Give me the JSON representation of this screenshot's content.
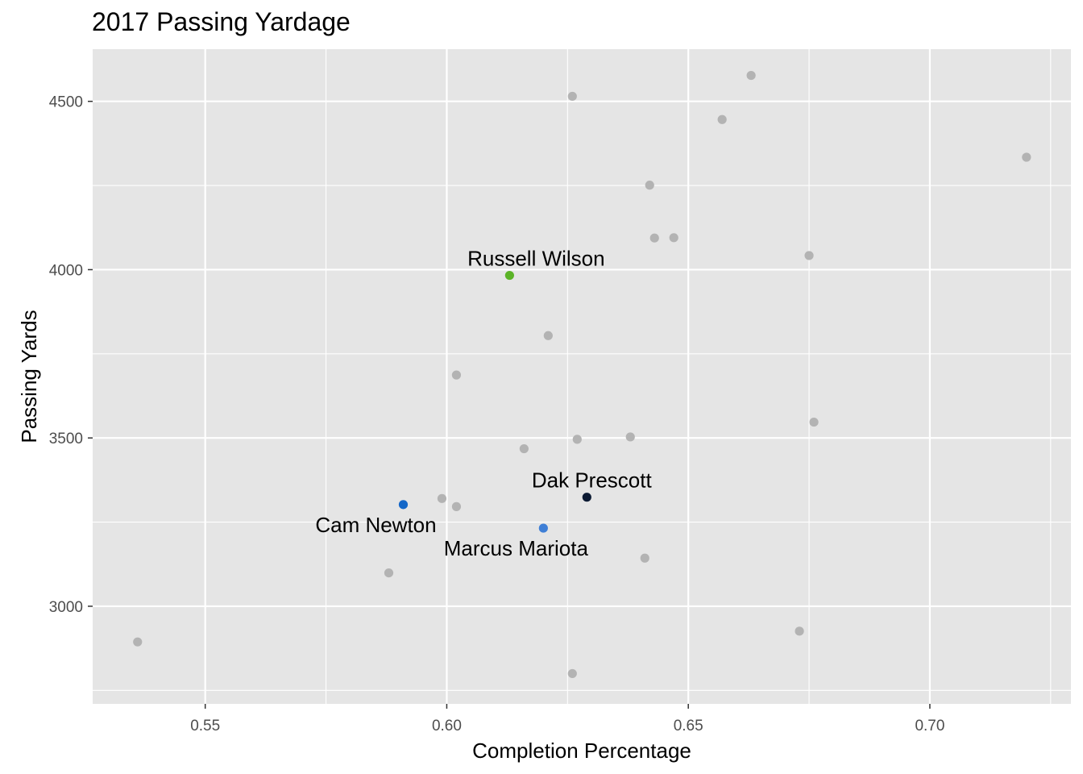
{
  "chart_data": {
    "type": "scatter",
    "title": "2017 Passing Yardage",
    "xlabel": "Completion Percentage",
    "ylabel": "Passing Yards",
    "xlim": [
      0.5267,
      0.7292
    ],
    "ylim": [
      2710,
      4655
    ],
    "x_ticks": [
      "0.55",
      "0.60",
      "0.65",
      "0.70"
    ],
    "y_ticks": [
      "3000",
      "3500",
      "4000",
      "4500"
    ],
    "x_tick_values": [
      0.55,
      0.6,
      0.65,
      0.7
    ],
    "y_tick_values": [
      3000,
      3500,
      4000,
      4500
    ],
    "grid": true,
    "background": "#e5e5e5",
    "default_point_color": "#b3b3b3",
    "highlighted": [
      {
        "label": "Russell Wilson",
        "x": 0.613,
        "y": 3983,
        "color": "#5bb327"
      },
      {
        "label": "Dak Prescott",
        "x": 0.629,
        "y": 3324,
        "color": "#0c1a33"
      },
      {
        "label": "Cam Newton",
        "x": 0.591,
        "y": 3302,
        "color": "#1467c8"
      },
      {
        "label": "Marcus Mariota",
        "x": 0.62,
        "y": 3232,
        "color": "#3f7fd6"
      }
    ],
    "points": [
      {
        "x": 0.663,
        "y": 4577
      },
      {
        "x": 0.626,
        "y": 4515
      },
      {
        "x": 0.657,
        "y": 4446
      },
      {
        "x": 0.72,
        "y": 4334
      },
      {
        "x": 0.642,
        "y": 4251
      },
      {
        "x": 0.643,
        "y": 4094
      },
      {
        "x": 0.647,
        "y": 4095
      },
      {
        "x": 0.675,
        "y": 4042
      },
      {
        "x": 0.621,
        "y": 3804
      },
      {
        "x": 0.602,
        "y": 3687
      },
      {
        "x": 0.676,
        "y": 3547
      },
      {
        "x": 0.638,
        "y": 3503
      },
      {
        "x": 0.627,
        "y": 3496
      },
      {
        "x": 0.616,
        "y": 3468
      },
      {
        "x": 0.599,
        "y": 3320
      },
      {
        "x": 0.602,
        "y": 3296
      },
      {
        "x": 0.641,
        "y": 3143
      },
      {
        "x": 0.588,
        "y": 3099
      },
      {
        "x": 0.673,
        "y": 2926
      },
      {
        "x": 0.536,
        "y": 2894
      },
      {
        "x": 0.626,
        "y": 2800
      }
    ]
  }
}
